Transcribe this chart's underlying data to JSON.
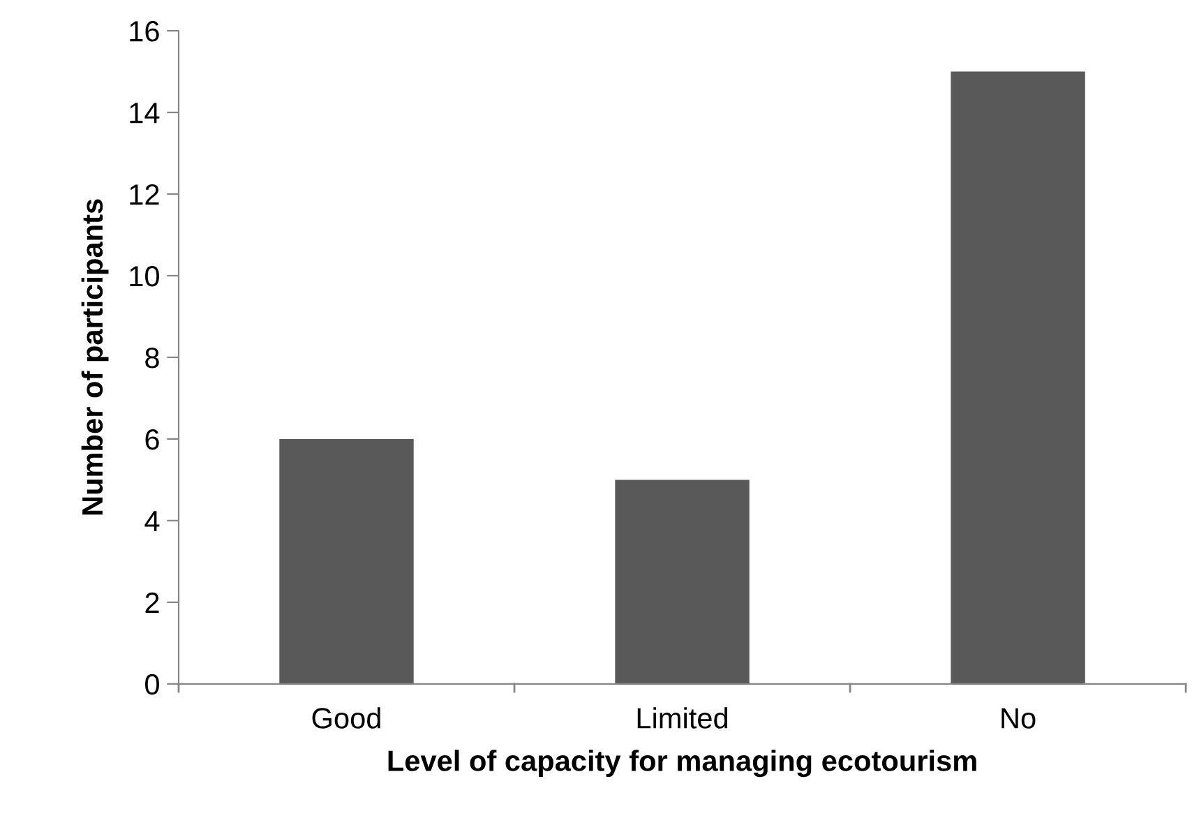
{
  "chart_data": {
    "type": "bar",
    "xlabel": "Level of capacity for managing ecotourism",
    "ylabel": "Number of participants",
    "categories": [
      "Good",
      "Limited",
      "No"
    ],
    "values": [
      6,
      5,
      15
    ],
    "color": "#595959",
    "ylim": [
      0,
      16
    ],
    "yticks": [
      0,
      2,
      4,
      6,
      8,
      10,
      12,
      14,
      16
    ],
    "grid": false,
    "legend": false
  }
}
